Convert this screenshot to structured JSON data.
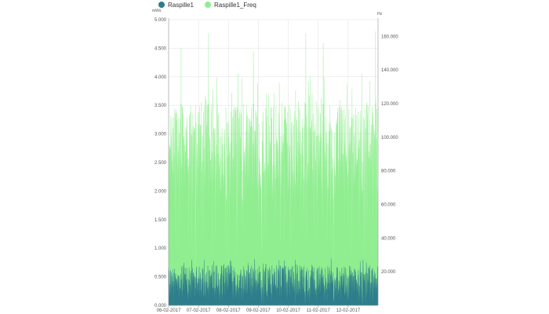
{
  "chart_data": {
    "type": "area",
    "legend": {
      "placement": "top-left"
    },
    "grid": true,
    "x": {
      "start": "2017-02-06",
      "end": "2017-02-13",
      "tick_labels": [
        "06-02-2017",
        "07-02-2017",
        "08-02-2017",
        "09-02-2017",
        "10-02-2017",
        "11-02-2017",
        "12-02-2017"
      ]
    },
    "y_left": {
      "unit": "mWs",
      "range": [
        0,
        5000
      ],
      "tick_labels": [
        "0.000",
        "0.500",
        "1.000",
        "1.500",
        "2.000",
        "2.500",
        "3.000",
        "3.500",
        "4.000",
        "4.500",
        "5.000"
      ]
    },
    "y_right": {
      "unit": "Hz",
      "range": [
        0,
        170000
      ],
      "tick_labels": [
        "20.000",
        "40.000",
        "60.000",
        "80.000",
        "100.000",
        "120.000",
        "140.000",
        "160.000"
      ]
    },
    "series": [
      {
        "name": "Raspille1",
        "axis": "left",
        "color": "#2e7d8c",
        "typical_range": [
          0,
          700
        ],
        "peak": 820
      },
      {
        "name": "Raspille1_Freq",
        "axis": "right",
        "color": "#90ee90",
        "typical_range": [
          60000,
          120000
        ],
        "peak": 163000,
        "peaks": [
          {
            "x": "2017-02-06T10:00",
            "y": 153000
          },
          {
            "x": "2017-02-07T08:00",
            "y": 162000
          },
          {
            "x": "2017-02-08T20:00",
            "y": 151000
          },
          {
            "x": "2017-02-10T14:00",
            "y": 162000
          },
          {
            "x": "2017-02-11T04:00",
            "y": 156000
          },
          {
            "x": "2017-02-12T22:00",
            "y": 163000
          }
        ]
      }
    ]
  }
}
